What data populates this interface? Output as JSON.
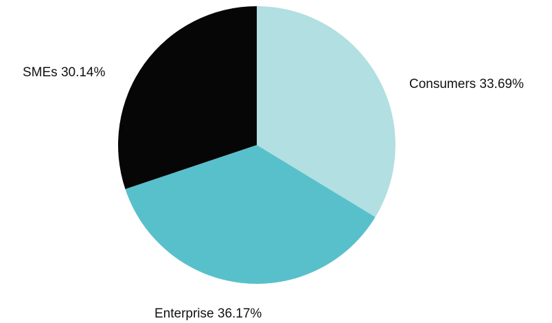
{
  "chart_data": {
    "type": "pie",
    "title": "",
    "slices": [
      {
        "label": "Consumers",
        "value": 33.69,
        "display": "Consumers 33.69%",
        "color": "#b2dfe1"
      },
      {
        "label": "Enterprise",
        "value": 36.17,
        "display": "Enterprise 36.17%",
        "color": "#58c0cb"
      },
      {
        "label": "SMEs",
        "value": 30.14,
        "display": "SMEs 30.14%",
        "color": "#060607"
      }
    ],
    "start_angle": "12 o'clock",
    "direction": "clockwise",
    "legend": "none",
    "labels": "outside"
  }
}
